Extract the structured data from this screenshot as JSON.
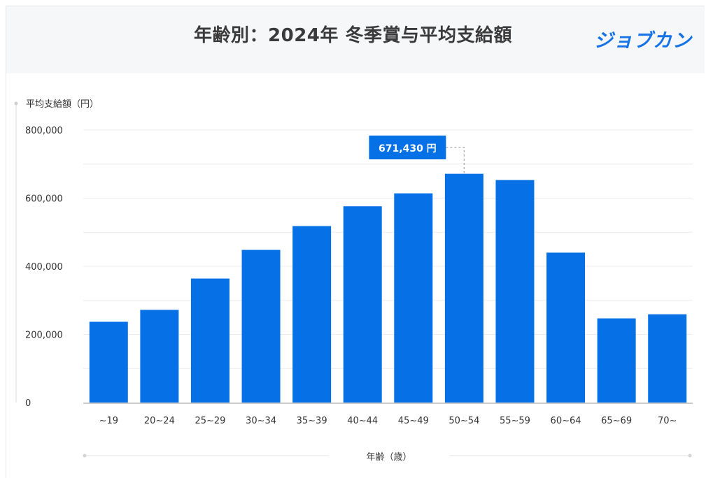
{
  "header": {
    "title": "年齢別：2024年 冬季賞与平均支給額",
    "brand": "ジョブカン"
  },
  "colors": {
    "bar": "#0670e6",
    "tooltip": "#0670e6",
    "brand": "#1673e6"
  },
  "tooltip": {
    "text": "671,430 円"
  },
  "chart_data": {
    "type": "bar",
    "title": "年齢別：2024年 冬季賞与平均支給額",
    "ylabel": "平均支給額（円）",
    "xlabel": "年齢（歳）",
    "categories": [
      "~19",
      "20~24",
      "25~29",
      "30~34",
      "35~39",
      "40~44",
      "45~49",
      "50~54",
      "55~59",
      "60~64",
      "65~69",
      "70~"
    ],
    "values": [
      237000,
      272000,
      364000,
      448000,
      518000,
      576000,
      614000,
      671430,
      653000,
      440000,
      247000,
      259000
    ],
    "ylim": [
      0,
      800000
    ],
    "yticks": [
      "800,000",
      "600,000",
      "400,000",
      "200,000",
      "0"
    ],
    "grid": true,
    "highlight_index": 7
  }
}
